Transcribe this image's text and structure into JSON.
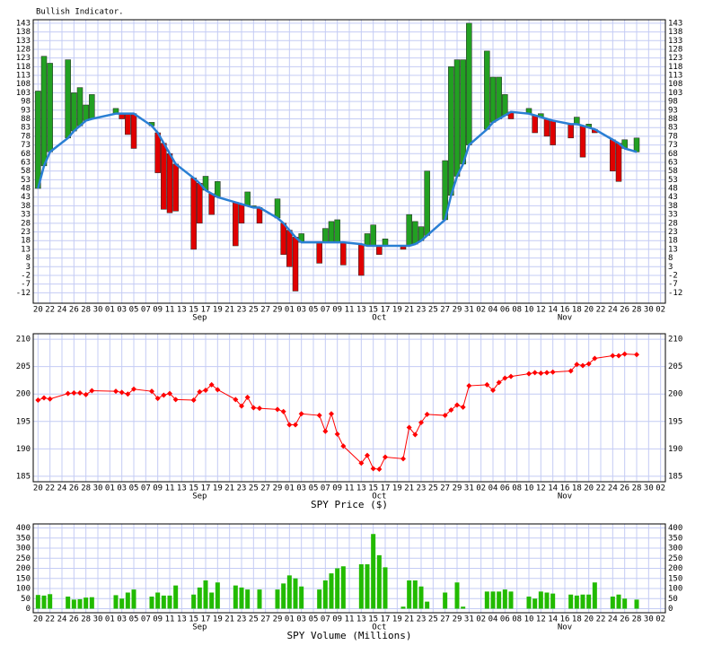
{
  "chart_data": [
    {
      "type": "bar",
      "title": "Bullish Indicator.",
      "x": [
        0,
        1,
        2,
        5,
        6,
        7,
        8,
        9,
        13,
        14,
        15,
        16,
        19,
        20,
        21,
        22,
        23,
        26,
        27,
        28,
        29,
        30,
        33,
        34,
        35,
        36,
        37,
        40,
        41,
        42,
        43,
        44,
        47,
        48,
        49,
        50,
        51,
        54,
        55,
        56,
        57,
        58,
        61,
        62,
        63,
        64,
        65,
        68,
        69,
        70,
        71,
        72,
        75,
        76,
        77,
        78,
        79,
        82,
        83,
        84,
        85,
        86,
        89,
        90,
        91,
        92,
        93,
        96,
        97,
        98,
        100
      ],
      "values": [
        104,
        124,
        120,
        122,
        103,
        106,
        96,
        102,
        94,
        88,
        79,
        71,
        86,
        57,
        36,
        34,
        35,
        13,
        28,
        55,
        33,
        52,
        15,
        28,
        46,
        38,
        28,
        42,
        10,
        3,
        -11,
        22,
        5,
        25,
        29,
        30,
        4,
        -2,
        22,
        27,
        10,
        19,
        13,
        33,
        29,
        26,
        58,
        64,
        118,
        122,
        122,
        143,
        127,
        112,
        112,
        102,
        88,
        94,
        80,
        91,
        78,
        73,
        77,
        89,
        66,
        85,
        80,
        58,
        52,
        76,
        77
      ],
      "up_color": "#22a022",
      "down_color": "#e00000",
      "average": {
        "color": "#2a7fd4",
        "values": [
          48,
          61,
          69,
          77,
          81,
          84,
          87,
          88,
          91,
          91,
          91,
          91,
          84,
          80,
          74,
          68,
          62,
          54,
          51,
          47,
          45,
          43,
          40,
          39,
          38,
          37,
          37,
          31,
          28,
          24,
          20,
          17,
          17,
          17,
          17,
          17,
          17,
          16,
          15,
          15,
          15,
          15,
          15,
          15,
          16,
          18,
          21,
          30,
          44,
          55,
          62,
          73,
          82,
          86,
          88,
          90,
          92,
          91,
          90,
          89,
          88,
          87,
          85,
          85,
          84,
          83,
          82,
          76,
          74,
          71,
          69
        ]
      },
      "xlim": [
        -0.8,
        104.8
      ],
      "xticks": [
        {
          "value": 0,
          "label": "20"
        },
        {
          "value": 2,
          "label": "22"
        },
        {
          "value": 4,
          "label": "24"
        },
        {
          "value": 6,
          "label": "26"
        },
        {
          "value": 8,
          "label": "28"
        },
        {
          "value": 10,
          "label": "30"
        },
        {
          "value": 12,
          "label": "01"
        },
        {
          "value": 14,
          "label": "03"
        },
        {
          "value": 16,
          "label": "05"
        },
        {
          "value": 18,
          "label": "07"
        },
        {
          "value": 20,
          "label": "09"
        },
        {
          "value": 22,
          "label": "11"
        },
        {
          "value": 24,
          "label": "13"
        },
        {
          "value": 26,
          "label": "15"
        },
        {
          "value": 28,
          "label": "17"
        },
        {
          "value": 30,
          "label": "19"
        },
        {
          "value": 32,
          "label": "21"
        },
        {
          "value": 34,
          "label": "23"
        },
        {
          "value": 36,
          "label": "25"
        },
        {
          "value": 38,
          "label": "27"
        },
        {
          "value": 40,
          "label": "29"
        },
        {
          "value": 42,
          "label": "01"
        },
        {
          "value": 44,
          "label": "03"
        },
        {
          "value": 46,
          "label": "05"
        },
        {
          "value": 48,
          "label": "07"
        },
        {
          "value": 50,
          "label": "09"
        },
        {
          "value": 52,
          "label": "11"
        },
        {
          "value": 54,
          "label": "13"
        },
        {
          "value": 56,
          "label": "15"
        },
        {
          "value": 58,
          "label": "17"
        },
        {
          "value": 60,
          "label": "19"
        },
        {
          "value": 62,
          "label": "21"
        },
        {
          "value": 64,
          "label": "23"
        },
        {
          "value": 66,
          "label": "25"
        },
        {
          "value": 68,
          "label": "27"
        },
        {
          "value": 70,
          "label": "29"
        },
        {
          "value": 72,
          "label": "31"
        },
        {
          "value": 74,
          "label": "02"
        },
        {
          "value": 76,
          "label": "04"
        },
        {
          "value": 78,
          "label": "06"
        },
        {
          "value": 80,
          "label": "08"
        },
        {
          "value": 82,
          "label": "10"
        },
        {
          "value": 84,
          "label": "12"
        },
        {
          "value": 86,
          "label": "14"
        },
        {
          "value": 88,
          "label": "16"
        },
        {
          "value": 90,
          "label": "18"
        },
        {
          "value": 92,
          "label": "20"
        },
        {
          "value": 94,
          "label": "22"
        },
        {
          "value": 96,
          "label": "24"
        },
        {
          "value": 98,
          "label": "26"
        },
        {
          "value": 100,
          "label": "28"
        },
        {
          "value": 102,
          "label": "30"
        },
        {
          "value": 104,
          "label": "02"
        }
      ],
      "month_labels": [
        {
          "value": 27,
          "label": "Sep"
        },
        {
          "value": 57,
          "label": "Oct"
        },
        {
          "value": 88,
          "label": "Nov"
        }
      ],
      "ylim": [
        -18,
        145
      ],
      "yticks": [
        143,
        138,
        133,
        128,
        123,
        118,
        113,
        108,
        103,
        98,
        93,
        88,
        83,
        78,
        73,
        68,
        63,
        58,
        53,
        48,
        43,
        38,
        33,
        28,
        23,
        18,
        13,
        8,
        3,
        -2,
        -7,
        -12
      ],
      "grid": true
    },
    {
      "type": "line",
      "xlabel": "SPY Price ($)",
      "color": "#ff0000",
      "x": [
        0,
        1,
        2,
        5,
        6,
        7,
        8,
        9,
        13,
        14,
        15,
        16,
        19,
        20,
        21,
        22,
        23,
        26,
        27,
        28,
        29,
        30,
        33,
        34,
        35,
        36,
        37,
        40,
        41,
        42,
        43,
        44,
        47,
        48,
        49,
        50,
        51,
        54,
        55,
        56,
        57,
        58,
        61,
        62,
        63,
        64,
        65,
        68,
        69,
        70,
        71,
        72,
        75,
        76,
        77,
        78,
        79,
        82,
        83,
        84,
        85,
        86,
        89,
        90,
        91,
        92,
        93,
        96,
        97,
        98,
        100
      ],
      "values": [
        198.9,
        199.3,
        199.1,
        200.1,
        200.2,
        200.2,
        199.9,
        200.6,
        200.5,
        200.3,
        200.0,
        200.9,
        200.5,
        199.2,
        199.8,
        200.1,
        199.0,
        198.9,
        200.4,
        200.7,
        201.7,
        200.8,
        199.0,
        197.8,
        199.4,
        197.5,
        197.4,
        197.2,
        196.8,
        194.4,
        194.4,
        196.4,
        196.1,
        193.2,
        196.4,
        192.7,
        190.5,
        187.4,
        188.8,
        186.4,
        186.3,
        188.5,
        188.2,
        193.9,
        192.6,
        194.8,
        196.3,
        196.1,
        197.1,
        198.0,
        197.6,
        201.5,
        201.7,
        200.7,
        202.1,
        202.9,
        203.2,
        203.7,
        203.9,
        203.8,
        203.9,
        204.0,
        204.2,
        205.4,
        205.2,
        205.5,
        206.5,
        207.0,
        207.0,
        207.3,
        207.2
      ],
      "xlim": [
        -0.8,
        104.8
      ],
      "xticks": [
        {
          "value": 0,
          "label": "20"
        },
        {
          "value": 2,
          "label": "22"
        },
        {
          "value": 4,
          "label": "24"
        },
        {
          "value": 6,
          "label": "26"
        },
        {
          "value": 8,
          "label": "28"
        },
        {
          "value": 10,
          "label": "30"
        },
        {
          "value": 12,
          "label": "01"
        },
        {
          "value": 14,
          "label": "03"
        },
        {
          "value": 16,
          "label": "05"
        },
        {
          "value": 18,
          "label": "07"
        },
        {
          "value": 20,
          "label": "09"
        },
        {
          "value": 22,
          "label": "11"
        },
        {
          "value": 24,
          "label": "13"
        },
        {
          "value": 26,
          "label": "15"
        },
        {
          "value": 28,
          "label": "17"
        },
        {
          "value": 30,
          "label": "19"
        },
        {
          "value": 32,
          "label": "21"
        },
        {
          "value": 34,
          "label": "23"
        },
        {
          "value": 36,
          "label": "25"
        },
        {
          "value": 38,
          "label": "27"
        },
        {
          "value": 40,
          "label": "29"
        },
        {
          "value": 42,
          "label": "01"
        },
        {
          "value": 44,
          "label": "03"
        },
        {
          "value": 46,
          "label": "05"
        },
        {
          "value": 48,
          "label": "07"
        },
        {
          "value": 50,
          "label": "09"
        },
        {
          "value": 52,
          "label": "11"
        },
        {
          "value": 54,
          "label": "13"
        },
        {
          "value": 56,
          "label": "15"
        },
        {
          "value": 58,
          "label": "17"
        },
        {
          "value": 60,
          "label": "19"
        },
        {
          "value": 62,
          "label": "21"
        },
        {
          "value": 64,
          "label": "23"
        },
        {
          "value": 66,
          "label": "25"
        },
        {
          "value": 68,
          "label": "27"
        },
        {
          "value": 70,
          "label": "29"
        },
        {
          "value": 72,
          "label": "31"
        },
        {
          "value": 74,
          "label": "02"
        },
        {
          "value": 76,
          "label": "04"
        },
        {
          "value": 78,
          "label": "06"
        },
        {
          "value": 80,
          "label": "08"
        },
        {
          "value": 82,
          "label": "10"
        },
        {
          "value": 84,
          "label": "12"
        },
        {
          "value": 86,
          "label": "14"
        },
        {
          "value": 88,
          "label": "16"
        },
        {
          "value": 90,
          "label": "18"
        },
        {
          "value": 92,
          "label": "20"
        },
        {
          "value": 94,
          "label": "22"
        },
        {
          "value": 96,
          "label": "24"
        },
        {
          "value": 98,
          "label": "26"
        },
        {
          "value": 100,
          "label": "28"
        },
        {
          "value": 102,
          "label": "30"
        },
        {
          "value": 104,
          "label": "02"
        }
      ],
      "month_labels": [
        {
          "value": 27,
          "label": "Sep"
        },
        {
          "value": 57,
          "label": "Oct"
        },
        {
          "value": 88,
          "label": "Nov"
        }
      ],
      "ylim": [
        184,
        211
      ],
      "yticks": [
        210,
        205,
        200,
        195,
        190,
        185
      ],
      "grid": true
    },
    {
      "type": "bar",
      "xlabel": "SPY Volume (Millions)",
      "color": "#22bb00",
      "x": [
        0,
        1,
        2,
        5,
        6,
        7,
        8,
        9,
        13,
        14,
        15,
        16,
        19,
        20,
        21,
        22,
        23,
        26,
        27,
        28,
        29,
        30,
        33,
        34,
        35,
        36,
        37,
        40,
        41,
        42,
        43,
        44,
        47,
        48,
        49,
        50,
        51,
        54,
        55,
        56,
        57,
        58,
        61,
        62,
        63,
        64,
        65,
        68,
        69,
        70,
        71,
        72,
        75,
        76,
        77,
        78,
        79,
        82,
        83,
        84,
        85,
        86,
        89,
        90,
        91,
        92,
        93,
        96,
        97,
        98,
        100
      ],
      "values": [
        68,
        65,
        72,
        60,
        45,
        47,
        55,
        57,
        67,
        50,
        80,
        95,
        60,
        80,
        65,
        65,
        115,
        70,
        105,
        140,
        80,
        130,
        115,
        105,
        95,
        null,
        95,
        95,
        125,
        165,
        150,
        110,
        95,
        140,
        175,
        200,
        210,
        220,
        220,
        370,
        265,
        205,
        10,
        140,
        140,
        110,
        35,
        80,
        null,
        130,
        10,
        null,
        85,
        85,
        85,
        95,
        85,
        60,
        50,
        85,
        80,
        75,
        70,
        65,
        70,
        70,
        130,
        60,
        70,
        50,
        45
      ],
      "xlim": [
        -0.8,
        104.8
      ],
      "xticks": [
        {
          "value": 0,
          "label": "20"
        },
        {
          "value": 2,
          "label": "22"
        },
        {
          "value": 4,
          "label": "24"
        },
        {
          "value": 6,
          "label": "26"
        },
        {
          "value": 8,
          "label": "28"
        },
        {
          "value": 10,
          "label": "30"
        },
        {
          "value": 12,
          "label": "01"
        },
        {
          "value": 14,
          "label": "03"
        },
        {
          "value": 16,
          "label": "05"
        },
        {
          "value": 18,
          "label": "07"
        },
        {
          "value": 20,
          "label": "09"
        },
        {
          "value": 22,
          "label": "11"
        },
        {
          "value": 24,
          "label": "13"
        },
        {
          "value": 26,
          "label": "15"
        },
        {
          "value": 28,
          "label": "17"
        },
        {
          "value": 30,
          "label": "19"
        },
        {
          "value": 32,
          "label": "21"
        },
        {
          "value": 34,
          "label": "23"
        },
        {
          "value": 36,
          "label": "25"
        },
        {
          "value": 38,
          "label": "27"
        },
        {
          "value": 40,
          "label": "29"
        },
        {
          "value": 42,
          "label": "01"
        },
        {
          "value": 44,
          "label": "03"
        },
        {
          "value": 46,
          "label": "05"
        },
        {
          "value": 48,
          "label": "07"
        },
        {
          "value": 50,
          "label": "09"
        },
        {
          "value": 52,
          "label": "11"
        },
        {
          "value": 54,
          "label": "13"
        },
        {
          "value": 56,
          "label": "15"
        },
        {
          "value": 58,
          "label": "17"
        },
        {
          "value": 60,
          "label": "19"
        },
        {
          "value": 62,
          "label": "21"
        },
        {
          "value": 64,
          "label": "23"
        },
        {
          "value": 66,
          "label": "25"
        },
        {
          "value": 68,
          "label": "27"
        },
        {
          "value": 70,
          "label": "29"
        },
        {
          "value": 72,
          "label": "31"
        },
        {
          "value": 74,
          "label": "02"
        },
        {
          "value": 76,
          "label": "04"
        },
        {
          "value": 78,
          "label": "06"
        },
        {
          "value": 80,
          "label": "08"
        },
        {
          "value": 82,
          "label": "10"
        },
        {
          "value": 84,
          "label": "12"
        },
        {
          "value": 86,
          "label": "14"
        },
        {
          "value": 88,
          "label": "16"
        },
        {
          "value": 90,
          "label": "18"
        },
        {
          "value": 92,
          "label": "20"
        },
        {
          "value": 94,
          "label": "22"
        },
        {
          "value": 96,
          "label": "24"
        },
        {
          "value": 98,
          "label": "26"
        },
        {
          "value": 100,
          "label": "28"
        },
        {
          "value": 102,
          "label": "30"
        },
        {
          "value": 104,
          "label": "02"
        }
      ],
      "month_labels": [
        {
          "value": 27,
          "label": "Sep"
        },
        {
          "value": 57,
          "label": "Oct"
        },
        {
          "value": 88,
          "label": "Nov"
        }
      ],
      "ylim": [
        -20,
        420
      ],
      "yticks": [
        400,
        350,
        300,
        250,
        200,
        150,
        100,
        50,
        0
      ],
      "grid": true
    }
  ]
}
